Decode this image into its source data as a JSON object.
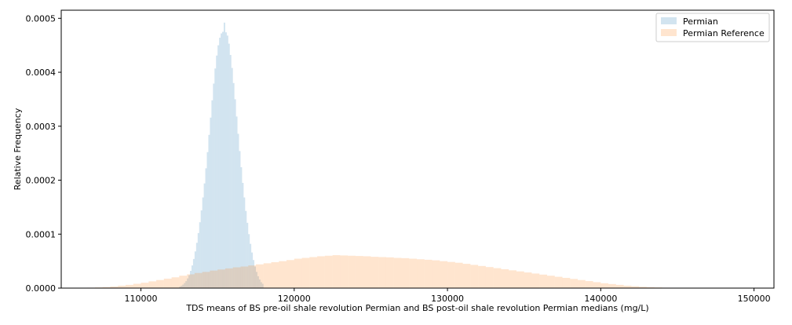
{
  "chart_data": {
    "type": "histogram",
    "xlabel": "TDS means of BS pre-oil shale revolution Permian and BS post-oil shale revolution Permian medians (mg/L)",
    "ylabel": "Relative Frequency",
    "xlim": [
      104800,
      151300
    ],
    "ylim": [
      0,
      0.000515
    ],
    "xticks": [
      110000,
      120000,
      130000,
      140000,
      150000
    ],
    "xtick_labels": [
      "110000",
      "120000",
      "130000",
      "140000",
      "150000"
    ],
    "yticks": [
      0,
      0.0001,
      0.0002,
      0.0003,
      0.0004,
      0.0005
    ],
    "ytick_labels": [
      "0.0000",
      "0.0001",
      "0.0002",
      "0.0003",
      "0.0004",
      "0.0005"
    ],
    "grid": false,
    "legend_position": "top-right",
    "series": [
      {
        "name": "Permian",
        "color": "#1f77b4",
        "alpha": 0.2,
        "bin_edges_start": 112500,
        "bin_width": 100,
        "density": [
          3e-06,
          4.5e-06,
          6.5e-06,
          9.5e-06,
          1.3e-05,
          1.8e-05,
          2.4e-05,
          3.2e-05,
          4.2e-05,
          5.4e-05,
          6.8e-05,
          8.4e-05,
          0.000102,
          0.000122,
          0.000144,
          0.000168,
          0.000194,
          0.000222,
          0.000252,
          0.000284,
          0.000316,
          0.000348,
          0.000379,
          0.000407,
          0.000431,
          0.00045,
          0.000464,
          0.000472,
          0.000475,
          0.000492,
          0.000474,
          0.000468,
          0.000453,
          0.000432,
          0.000408,
          0.00038,
          0.00035,
          0.000318,
          0.000286,
          0.000254,
          0.000224,
          0.000195,
          0.000168,
          0.000143,
          0.000121,
          0.0001,
          8.2e-05,
          6.6e-05,
          5.2e-05,
          4e-05,
          3e-05,
          2.2e-05,
          1.6e-05,
          1.1e-05,
          8e-06
        ]
      },
      {
        "name": "Permian Reference",
        "color": "#ff7f0e",
        "alpha": 0.2,
        "bin_edges_start": 106000,
        "bin_width": 500,
        "density": [
          5e-07,
          8e-07,
          1.2e-06,
          2e-06,
          3e-06,
          4.5e-06,
          6e-06,
          8e-06,
          1e-05,
          1.25e-05,
          1.5e-05,
          1.75e-05,
          2e-05,
          2.3e-05,
          2.55e-05,
          2.8e-05,
          3e-05,
          3.25e-05,
          3.45e-05,
          3.65e-05,
          3.85e-05,
          4e-05,
          4.2e-05,
          4.4e-05,
          4.6e-05,
          4.8e-05,
          5e-05,
          5.2e-05,
          5.45e-05,
          5.6e-05,
          5.75e-05,
          5.9e-05,
          6e-05,
          6.1e-05,
          6.05e-05,
          6e-05,
          5.95e-05,
          5.9e-05,
          5.8e-05,
          5.75e-05,
          5.7e-05,
          5.6e-05,
          5.55e-05,
          5.45e-05,
          5.35e-05,
          5.25e-05,
          5.15e-05,
          5e-05,
          4.85e-05,
          4.7e-05,
          4.5e-05,
          4.3e-05,
          4.1e-05,
          3.9e-05,
          3.7e-05,
          3.5e-05,
          3.3e-05,
          3.1e-05,
          2.9e-05,
          2.7e-05,
          2.5e-05,
          2.3e-05,
          2.1e-05,
          1.9e-05,
          1.7e-05,
          1.5e-05,
          1.3e-05,
          1.1e-05,
          9e-06,
          7.5e-06,
          6e-06,
          4.5e-06,
          3.5e-06,
          2.5e-06,
          1.8e-06,
          1.2e-06,
          8e-07,
          5e-07,
          3e-07,
          2e-07,
          1e-07,
          1e-07,
          1e-07,
          1e-07,
          1e-07
        ]
      }
    ]
  }
}
